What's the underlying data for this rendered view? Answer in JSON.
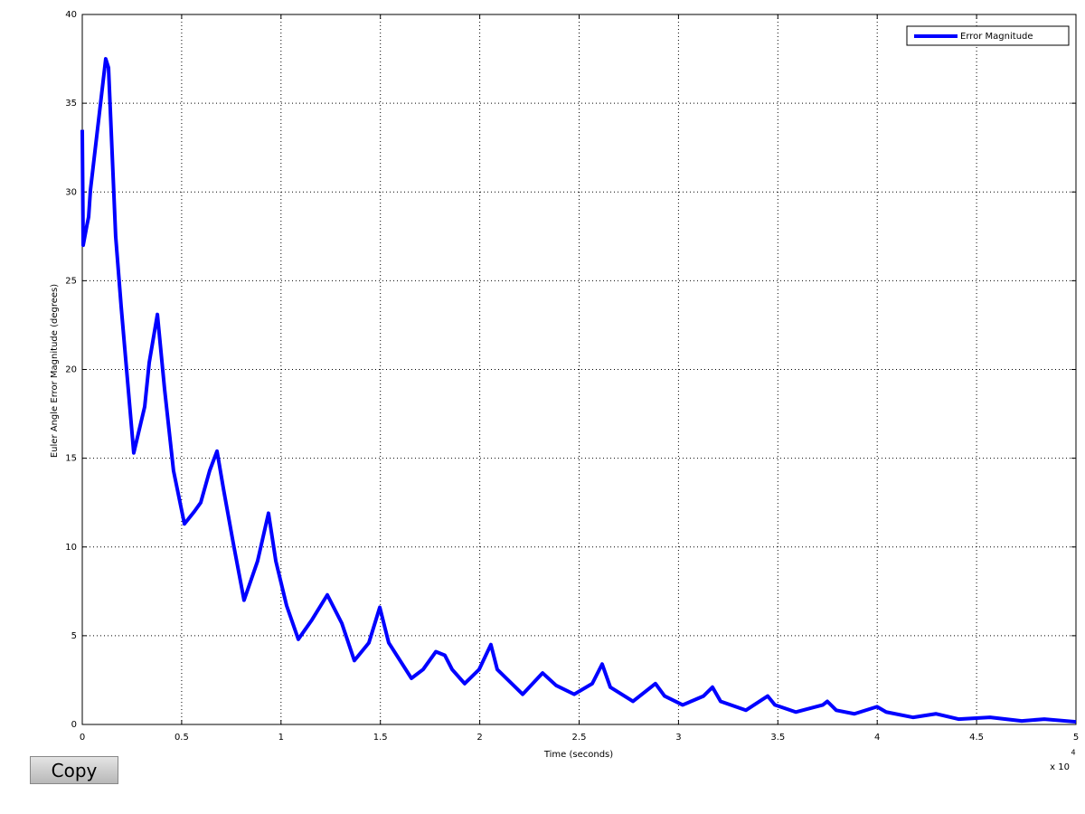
{
  "chart_data": {
    "type": "line",
    "xlabel": "Time (seconds)",
    "ylabel": "Euler Angle Error Magnitude (degrees)",
    "x_multiplier": "x 10",
    "x_multiplier_exponent": "4",
    "xlim": [
      0,
      5
    ],
    "ylim": [
      0,
      40
    ],
    "xticks": [
      0,
      0.5,
      1,
      1.5,
      2,
      2.5,
      3,
      3.5,
      4,
      4.5,
      5
    ],
    "yticks": [
      0,
      5,
      10,
      15,
      20,
      25,
      30,
      35,
      40
    ],
    "grid": true,
    "legend_position": "upper-right",
    "x": [
      0,
      0.0045,
      0.023,
      0.032,
      0.041,
      0.118,
      0.132,
      0.168,
      0.196,
      0.259,
      0.314,
      0.337,
      0.378,
      0.414,
      0.459,
      0.514,
      0.564,
      0.596,
      0.641,
      0.678,
      0.71,
      0.76,
      0.814,
      0.882,
      0.937,
      0.974,
      1.028,
      1.087,
      1.156,
      1.233,
      1.306,
      1.369,
      1.442,
      1.497,
      1.542,
      1.656,
      1.715,
      1.779,
      1.824,
      1.861,
      1.924,
      1.997,
      2.056,
      2.088,
      2.216,
      2.316,
      2.384,
      2.475,
      2.566,
      2.616,
      2.657,
      2.771,
      2.884,
      2.93,
      3.021,
      3.126,
      3.171,
      3.212,
      3.339,
      3.449,
      3.485,
      3.59,
      3.726,
      3.749,
      3.794,
      3.885,
      3.999,
      4.045,
      4.181,
      4.295,
      4.409,
      4.568,
      4.727,
      4.841,
      5
    ],
    "series": [
      {
        "name": "Error Magnitude",
        "color": "#0000ff",
        "values": [
          33.5,
          27,
          28.1,
          28.6,
          30.1,
          37.5,
          37,
          27.5,
          23.5,
          15.3,
          17.9,
          20.4,
          23.1,
          18.9,
          14.3,
          11.3,
          12.0,
          12.5,
          14.3,
          15.4,
          13.3,
          10.2,
          7.0,
          9.2,
          11.9,
          9.2,
          6.7,
          4.8,
          5.9,
          7.3,
          5.7,
          3.6,
          4.6,
          6.6,
          4.6,
          2.6,
          3.1,
          4.1,
          3.9,
          3.1,
          2.3,
          3.1,
          4.5,
          3.1,
          1.7,
          2.9,
          2.2,
          1.7,
          2.3,
          3.4,
          2.1,
          1.3,
          2.3,
          1.6,
          1.1,
          1.6,
          2.1,
          1.3,
          0.8,
          1.6,
          1.1,
          0.7,
          1.1,
          1.3,
          0.8,
          0.6,
          1.0,
          0.7,
          0.4,
          0.6,
          0.3,
          0.4,
          0.2,
          0.3,
          0.15
        ]
      }
    ]
  },
  "button": {
    "label": "Copy"
  }
}
